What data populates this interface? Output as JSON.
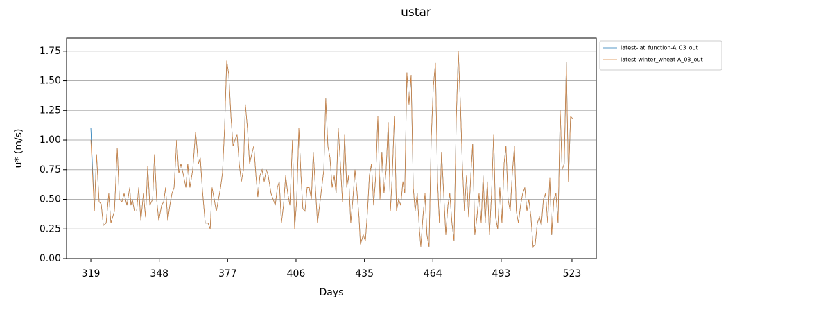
{
  "chart_data": {
    "type": "line",
    "title": "ustar",
    "xlabel": "Days",
    "ylabel": "u* (m/s)",
    "x": [
      319.0,
      320.5,
      321.4,
      322.5,
      323.4,
      324.3,
      325.5,
      326.6,
      327.5,
      329.0,
      330.2,
      331.1,
      332.2,
      333.1,
      334.3,
      335.5,
      336.0,
      336.6,
      337.5,
      338.4,
      339.3,
      340.2,
      341.3,
      342.2,
      343.1,
      344.0,
      345.2,
      346.0,
      346.9,
      347.8,
      349.0,
      349.9,
      350.7,
      351.6,
      352.5,
      353.4,
      354.3,
      355.4,
      356.3,
      357.2,
      358.1,
      359.3,
      360.1,
      361.0,
      362.2,
      363.4,
      364.6,
      365.4,
      366.3,
      367.5,
      368.7,
      369.6,
      370.4,
      371.3,
      372.2,
      373.1,
      374.0,
      374.8,
      375.7,
      376.6,
      377.5,
      378.4,
      379.3,
      380.1,
      381.0,
      381.9,
      382.8,
      383.7,
      384.5,
      385.4,
      386.3,
      387.2,
      388.1,
      389.0,
      389.8,
      390.7,
      391.6,
      392.5,
      393.4,
      394.2,
      395.4,
      396.3,
      397.2,
      398.1,
      398.9,
      399.8,
      400.7,
      401.6,
      402.5,
      403.4,
      404.5,
      405.4,
      406.3,
      407.2,
      408.1,
      408.9,
      409.8,
      410.7,
      411.6,
      412.5,
      413.3,
      414.2,
      415.1,
      416.0,
      416.9,
      417.8,
      418.6,
      419.5,
      420.4,
      421.3,
      422.2,
      423.0,
      423.9,
      424.8,
      425.7,
      426.6,
      427.5,
      428.3,
      429.2,
      430.1,
      431.0,
      431.9,
      432.7,
      433.3,
      434.5,
      435.4,
      436.3,
      437.1,
      438.0,
      438.9,
      439.8,
      440.7,
      441.6,
      442.4,
      443.3,
      444.2,
      445.1,
      446.0,
      446.8,
      447.7,
      448.6,
      449.5,
      450.4,
      451.3,
      452.1,
      453.0,
      453.9,
      454.8,
      455.7,
      456.5,
      457.4,
      458.3,
      458.9,
      459.8,
      460.7,
      461.5,
      462.4,
      463.3,
      464.2,
      465.1,
      466.0,
      466.8,
      467.7,
      468.6,
      469.5,
      470.4,
      471.2,
      472.1,
      473.0,
      473.9,
      474.8,
      475.7,
      476.5,
      477.4,
      478.3,
      479.2,
      480.1,
      480.9,
      481.8,
      482.7,
      483.6,
      484.5,
      485.3,
      486.2,
      487.1,
      488.0,
      488.9,
      489.8,
      490.6,
      491.5,
      492.4,
      493.3,
      494.2,
      495.0,
      495.9,
      496.8,
      497.7,
      498.6,
      499.4,
      500.3,
      501.2,
      502.1,
      503.0,
      503.9,
      504.7,
      505.6,
      506.5,
      507.4,
      508.3,
      509.2,
      510.0,
      510.9,
      511.8,
      512.7,
      513.6,
      514.4,
      515.3,
      516.2,
      517.1,
      518.0,
      518.8,
      519.7,
      520.6,
      521.5,
      522.4,
      523.3
    ],
    "series": [
      {
        "name": "latest-lat_function-A_03_out",
        "color": "#1f77b4",
        "values": [
          1.1,
          0.4,
          0.88,
          0.48,
          0.46,
          0.28,
          0.3,
          0.55,
          0.3,
          0.4,
          0.93,
          0.5,
          0.48,
          0.55,
          0.45,
          0.6,
          0.45,
          0.5,
          0.4,
          0.4,
          0.6,
          0.32,
          0.55,
          0.35,
          0.78,
          0.45,
          0.5,
          0.88,
          0.5,
          0.32,
          0.45,
          0.48,
          0.6,
          0.32,
          0.45,
          0.55,
          0.6,
          1.0,
          0.72,
          0.8,
          0.72,
          0.6,
          0.8,
          0.6,
          0.75,
          1.07,
          0.8,
          0.85,
          0.58,
          0.3,
          0.3,
          0.25,
          0.6,
          0.5,
          0.4,
          0.5,
          0.6,
          0.72,
          1.1,
          1.67,
          1.55,
          1.2,
          0.95,
          1.0,
          1.05,
          0.8,
          0.65,
          0.75,
          1.3,
          1.1,
          0.8,
          0.88,
          0.95,
          0.7,
          0.52,
          0.7,
          0.75,
          0.65,
          0.75,
          0.7,
          0.55,
          0.5,
          0.45,
          0.6,
          0.65,
          0.3,
          0.45,
          0.7,
          0.55,
          0.45,
          1.0,
          0.25,
          0.5,
          1.1,
          0.7,
          0.42,
          0.4,
          0.6,
          0.6,
          0.5,
          0.9,
          0.6,
          0.3,
          0.45,
          0.6,
          0.75,
          1.35,
          0.95,
          0.85,
          0.6,
          0.7,
          0.55,
          1.1,
          0.8,
          0.48,
          1.05,
          0.6,
          0.7,
          0.3,
          0.5,
          0.75,
          0.55,
          0.35,
          0.12,
          0.2,
          0.15,
          0.4,
          0.7,
          0.8,
          0.45,
          0.7,
          1.2,
          0.5,
          0.9,
          0.55,
          0.75,
          1.15,
          0.4,
          0.7,
          1.2,
          0.4,
          0.5,
          0.45,
          0.65,
          0.55,
          1.57,
          1.3,
          1.55,
          0.6,
          0.4,
          0.55,
          0.25,
          0.1,
          0.35,
          0.55,
          0.2,
          0.1,
          1.0,
          1.45,
          1.65,
          0.65,
          0.3,
          0.9,
          0.55,
          0.2,
          0.45,
          0.55,
          0.3,
          0.15,
          1.15,
          1.75,
          1.3,
          0.8,
          0.4,
          0.7,
          0.35,
          0.7,
          0.97,
          0.2,
          0.35,
          0.55,
          0.3,
          0.7,
          0.3,
          0.65,
          0.2,
          0.55,
          1.05,
          0.35,
          0.25,
          0.6,
          0.3,
          0.8,
          0.95,
          0.5,
          0.4,
          0.72,
          0.95,
          0.4,
          0.3,
          0.45,
          0.55,
          0.6,
          0.4,
          0.5,
          0.35,
          0.1,
          0.12,
          0.3,
          0.35,
          0.28,
          0.5,
          0.55,
          0.3,
          0.68,
          0.2,
          0.5,
          0.55,
          0.3,
          1.25,
          0.75,
          0.8,
          1.66,
          0.65,
          1.2,
          1.18
        ]
      },
      {
        "name": "latest-winter_wheat-A_03_out",
        "color": "#d8843e",
        "values": [
          1.0,
          0.4,
          0.88,
          0.48,
          0.46,
          0.28,
          0.3,
          0.55,
          0.3,
          0.4,
          0.93,
          0.5,
          0.48,
          0.55,
          0.45,
          0.6,
          0.45,
          0.5,
          0.4,
          0.4,
          0.6,
          0.32,
          0.55,
          0.35,
          0.78,
          0.45,
          0.5,
          0.88,
          0.5,
          0.32,
          0.45,
          0.48,
          0.6,
          0.32,
          0.45,
          0.55,
          0.6,
          1.0,
          0.72,
          0.8,
          0.72,
          0.6,
          0.8,
          0.6,
          0.75,
          1.07,
          0.8,
          0.85,
          0.58,
          0.3,
          0.3,
          0.25,
          0.6,
          0.5,
          0.4,
          0.5,
          0.6,
          0.72,
          1.1,
          1.67,
          1.55,
          1.2,
          0.95,
          1.0,
          1.05,
          0.8,
          0.65,
          0.75,
          1.3,
          1.1,
          0.8,
          0.88,
          0.95,
          0.7,
          0.52,
          0.7,
          0.75,
          0.65,
          0.75,
          0.7,
          0.55,
          0.5,
          0.45,
          0.6,
          0.65,
          0.3,
          0.45,
          0.7,
          0.55,
          0.45,
          1.0,
          0.25,
          0.5,
          1.1,
          0.7,
          0.42,
          0.4,
          0.6,
          0.6,
          0.5,
          0.9,
          0.6,
          0.3,
          0.45,
          0.6,
          0.75,
          1.35,
          0.95,
          0.85,
          0.6,
          0.7,
          0.55,
          1.1,
          0.8,
          0.48,
          1.05,
          0.6,
          0.7,
          0.3,
          0.5,
          0.75,
          0.55,
          0.35,
          0.12,
          0.2,
          0.15,
          0.4,
          0.7,
          0.8,
          0.45,
          0.7,
          1.2,
          0.5,
          0.9,
          0.55,
          0.75,
          1.15,
          0.4,
          0.7,
          1.2,
          0.4,
          0.5,
          0.45,
          0.65,
          0.55,
          1.57,
          1.3,
          1.55,
          0.6,
          0.4,
          0.55,
          0.25,
          0.1,
          0.35,
          0.55,
          0.2,
          0.1,
          1.0,
          1.45,
          1.65,
          0.65,
          0.3,
          0.9,
          0.55,
          0.2,
          0.45,
          0.55,
          0.3,
          0.15,
          1.15,
          1.75,
          1.3,
          0.8,
          0.4,
          0.7,
          0.35,
          0.7,
          0.97,
          0.2,
          0.35,
          0.55,
          0.3,
          0.7,
          0.3,
          0.65,
          0.2,
          0.55,
          1.05,
          0.35,
          0.25,
          0.6,
          0.3,
          0.8,
          0.95,
          0.5,
          0.4,
          0.72,
          0.95,
          0.4,
          0.3,
          0.45,
          0.55,
          0.6,
          0.4,
          0.5,
          0.35,
          0.1,
          0.12,
          0.3,
          0.35,
          0.28,
          0.5,
          0.55,
          0.3,
          0.68,
          0.2,
          0.5,
          0.55,
          0.3,
          1.25,
          0.75,
          0.8,
          1.66,
          0.65,
          1.2,
          1.18
        ]
      }
    ],
    "xlim": [
      308.7,
      533.3
    ],
    "xticks": [
      319,
      348,
      377,
      406,
      435,
      464,
      493,
      523
    ],
    "ylim": [
      0,
      1.86
    ],
    "yticks": [
      {
        "value": 0,
        "label": "0.00"
      },
      {
        "value": 0.25,
        "label": "0.25"
      },
      {
        "value": 0.5,
        "label": "0.50"
      },
      {
        "value": 0.75,
        "label": "0.75"
      },
      {
        "value": 1.0,
        "label": "1.00"
      },
      {
        "value": 1.25,
        "label": "1.25"
      },
      {
        "value": 1.5,
        "label": "1.50"
      },
      {
        "value": 1.75,
        "label": "1.75"
      }
    ],
    "grid": "y",
    "legend": "outside upper right"
  }
}
